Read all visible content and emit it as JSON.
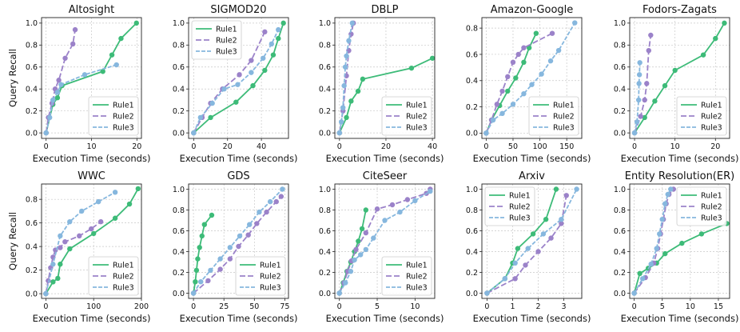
{
  "figure": {
    "xlabel": "Execution Time (seconds)",
    "ylabel": "Query Recall"
  },
  "colors": {
    "rule1": "#3dbb78",
    "rule2": "#9b82c9",
    "rule3": "#86b7de"
  },
  "chart_data": [
    {
      "type": "line",
      "title": "Altosight",
      "xlabel": "Execution Time (seconds)",
      "ylabel": "Query Recall",
      "xlim": [
        -1,
        21
      ],
      "ylim": [
        -0.05,
        1.05
      ],
      "xticks": [
        0,
        10,
        20
      ],
      "yticks": [
        0.0,
        0.2,
        0.4,
        0.6,
        0.8,
        1.0
      ],
      "grid": true,
      "legend": "bottom-right",
      "series": [
        {
          "name": "Rule1",
          "x": [
            0,
            1.5,
            2.5,
            3.5,
            12.5,
            14.5,
            16.5,
            19.9
          ],
          "y": [
            0.0,
            0.26,
            0.32,
            0.43,
            0.56,
            0.71,
            0.86,
            1.0
          ]
        },
        {
          "name": "Rule2",
          "x": [
            0,
            0.5,
            1.3,
            2.0,
            2.8,
            4.2,
            5.9,
            6.4
          ],
          "y": [
            0.0,
            0.14,
            0.27,
            0.4,
            0.48,
            0.68,
            0.81,
            0.94
          ]
        },
        {
          "name": "Rule3",
          "x": [
            0,
            0.8,
            1.5,
            2.5,
            3.3,
            8.5,
            15.5
          ],
          "y": [
            0.0,
            0.14,
            0.3,
            0.37,
            0.44,
            0.53,
            0.62
          ]
        }
      ]
    },
    {
      "type": "line",
      "title": "SIGMOD20",
      "xlabel": "Execution Time (seconds)",
      "ylabel": "",
      "xlim": [
        -3,
        56
      ],
      "ylim": [
        -0.05,
        1.05
      ],
      "xticks": [
        0,
        20,
        40
      ],
      "yticks": [
        0.0,
        0.2,
        0.4,
        0.6,
        0.8,
        1.0
      ],
      "grid": true,
      "legend": "top-left",
      "series": [
        {
          "name": "Rule1",
          "x": [
            0,
            10,
            25,
            35,
            42,
            47,
            50,
            53
          ],
          "y": [
            0.0,
            0.14,
            0.28,
            0.43,
            0.57,
            0.71,
            0.86,
            1.0
          ]
        },
        {
          "name": "Rule2",
          "x": [
            0,
            5,
            10,
            17,
            27,
            34,
            42
          ],
          "y": [
            0.0,
            0.14,
            0.27,
            0.4,
            0.53,
            0.66,
            0.92
          ]
        },
        {
          "name": "Rule3",
          "x": [
            0,
            4,
            11,
            18,
            26,
            34,
            41,
            46,
            50
          ],
          "y": [
            0.0,
            0.14,
            0.27,
            0.4,
            0.44,
            0.55,
            0.68,
            0.81,
            0.94
          ]
        }
      ]
    },
    {
      "type": "line",
      "title": "DBLP",
      "xlabel": "Execution Time (seconds)",
      "ylabel": "",
      "xlim": [
        -2,
        41
      ],
      "ylim": [
        -0.05,
        1.05
      ],
      "xticks": [
        0,
        20,
        40
      ],
      "yticks": [
        0.0,
        0.2,
        0.4,
        0.6,
        0.8,
        1.0
      ],
      "grid": true,
      "legend": "bottom-right",
      "series": [
        {
          "name": "Rule1",
          "x": [
            0,
            3,
            5,
            8,
            10,
            31,
            40
          ],
          "y": [
            0.0,
            0.14,
            0.29,
            0.38,
            0.49,
            0.59,
            0.68
          ]
        },
        {
          "name": "Rule2",
          "x": [
            0,
            1.5,
            3,
            4,
            5,
            6
          ],
          "y": [
            0.0,
            0.2,
            0.52,
            0.75,
            0.9,
            1.0
          ]
        },
        {
          "name": "Rule3",
          "x": [
            0,
            0.8,
            1.5,
            2,
            2.5,
            3,
            4,
            5.5
          ],
          "y": [
            0.0,
            0.1,
            0.23,
            0.43,
            0.6,
            0.7,
            0.84,
            1.0
          ]
        }
      ]
    },
    {
      "type": "line",
      "title": "Amazon-Google",
      "xlabel": "Execution Time (seconds)",
      "ylabel": "",
      "xlim": [
        -8,
        178
      ],
      "ylim": [
        -0.04,
        0.88
      ],
      "xticks": [
        0,
        50,
        100,
        150
      ],
      "yticks": [
        0.0,
        0.2,
        0.4,
        0.6,
        0.8
      ],
      "grid": true,
      "legend": "bottom-right",
      "series": [
        {
          "name": "Rule1",
          "x": [
            0,
            10,
            25,
            40,
            55,
            70,
            80,
            93
          ],
          "y": [
            0.0,
            0.1,
            0.21,
            0.32,
            0.42,
            0.54,
            0.65,
            0.76
          ]
        },
        {
          "name": "Rule2",
          "x": [
            0,
            10,
            20,
            30,
            40,
            50,
            60,
            70,
            123
          ],
          "y": [
            0.0,
            0.1,
            0.22,
            0.32,
            0.43,
            0.54,
            0.6,
            0.65,
            0.76
          ]
        },
        {
          "name": "Rule3",
          "x": [
            0,
            13,
            30,
            50,
            70,
            85,
            103,
            120,
            135,
            165
          ],
          "y": [
            0.0,
            0.1,
            0.15,
            0.22,
            0.3,
            0.37,
            0.45,
            0.55,
            0.63,
            0.84
          ]
        }
      ]
    },
    {
      "type": "line",
      "title": "Fodors-Zagats",
      "xlabel": "Execution Time (seconds)",
      "ylabel": "",
      "xlim": [
        -1.2,
        23.5
      ],
      "ylim": [
        -0.05,
        1.05
      ],
      "xticks": [
        0,
        10,
        20
      ],
      "yticks": [
        0.0,
        0.2,
        0.4,
        0.6,
        0.8,
        1.0
      ],
      "grid": true,
      "legend": "bottom-right",
      "series": [
        {
          "name": "Rule1",
          "x": [
            0,
            2.5,
            5,
            7.5,
            10,
            17,
            20,
            22.2
          ],
          "y": [
            0.0,
            0.14,
            0.29,
            0.43,
            0.57,
            0.71,
            0.86,
            1.0
          ]
        },
        {
          "name": "Rule2",
          "x": [
            0,
            1.5,
            2.5,
            3,
            3.5,
            4
          ],
          "y": [
            0.0,
            0.15,
            0.3,
            0.45,
            0.75,
            0.89
          ]
        },
        {
          "name": "Rule3",
          "x": [
            0,
            0.6,
            1.0,
            1.1,
            1.2,
            1.3
          ],
          "y": [
            0.0,
            0.1,
            0.3,
            0.45,
            0.53,
            0.64
          ]
        }
      ]
    },
    {
      "type": "line",
      "title": "WWC",
      "xlabel": "Execution Time (seconds)",
      "ylabel": "Query Recall",
      "xlim": [
        -9,
        200
      ],
      "ylim": [
        -0.04,
        0.93
      ],
      "xticks": [
        0,
        100,
        200
      ],
      "yticks": [
        0.0,
        0.2,
        0.4,
        0.6,
        0.8
      ],
      "grid": true,
      "legend": "bottom-right",
      "series": [
        {
          "name": "Rule1",
          "x": [
            0,
            15,
            25,
            30,
            50,
            100,
            145,
            175,
            193
          ],
          "y": [
            0.0,
            0.1,
            0.13,
            0.25,
            0.38,
            0.51,
            0.64,
            0.76,
            0.89
          ]
        },
        {
          "name": "Rule2",
          "x": [
            0,
            5,
            10,
            15,
            20,
            30,
            40,
            70,
            95,
            115
          ],
          "y": [
            0.0,
            0.11,
            0.22,
            0.31,
            0.37,
            0.39,
            0.44,
            0.49,
            0.55,
            0.61
          ]
        },
        {
          "name": "Rule3",
          "x": [
            0,
            15,
            30,
            50,
            75,
            110,
            145
          ],
          "y": [
            0.0,
            0.25,
            0.49,
            0.61,
            0.7,
            0.78,
            0.86
          ]
        }
      ]
    },
    {
      "type": "line",
      "title": "GDS",
      "xlabel": "Execution Time (seconds)",
      "ylabel": "",
      "xlim": [
        -4,
        78
      ],
      "ylim": [
        -0.05,
        1.05
      ],
      "xticks": [
        0,
        25,
        50,
        75
      ],
      "yticks": [
        0.0,
        0.2,
        0.4,
        0.6,
        0.8,
        1.0
      ],
      "grid": true,
      "legend": "bottom-right",
      "series": [
        {
          "name": "Rule1",
          "x": [
            0,
            1.5,
            2.5,
            3.5,
            5,
            7,
            9,
            15
          ],
          "y": [
            0.0,
            0.11,
            0.22,
            0.33,
            0.44,
            0.55,
            0.66,
            0.75
          ]
        },
        {
          "name": "Rule2",
          "x": [
            0,
            12,
            22,
            30,
            37,
            45,
            52,
            60,
            68,
            72
          ],
          "y": [
            0.0,
            0.12,
            0.23,
            0.33,
            0.45,
            0.56,
            0.67,
            0.78,
            0.88,
            0.93
          ]
        },
        {
          "name": "Rule3",
          "x": [
            0,
            6,
            14,
            22,
            30,
            38,
            46,
            54,
            63,
            73
          ],
          "y": [
            0.0,
            0.11,
            0.22,
            0.33,
            0.44,
            0.55,
            0.66,
            0.78,
            0.88,
            1.0
          ]
        }
      ]
    },
    {
      "type": "line",
      "title": "CiteSeer",
      "xlabel": "Execution Time (seconds)",
      "ylabel": "",
      "xlim": [
        -0.6,
        12.6
      ],
      "ylim": [
        -0.05,
        1.05
      ],
      "xticks": [
        0,
        5,
        10
      ],
      "yticks": [
        0.0,
        0.2,
        0.4,
        0.6,
        0.8,
        1.0
      ],
      "grid": true,
      "legend": "bottom-right",
      "series": [
        {
          "name": "Rule1",
          "x": [
            0,
            0.5,
            1,
            1.5,
            2,
            2.5,
            3,
            3.5
          ],
          "y": [
            0.0,
            0.1,
            0.21,
            0.3,
            0.4,
            0.5,
            0.62,
            0.8
          ]
        },
        {
          "name": "Rule2",
          "x": [
            0,
            0.6,
            1.1,
            1.6,
            2.2,
            3.5,
            5,
            7,
            9,
            11.5,
            12
          ],
          "y": [
            0.0,
            0.1,
            0.21,
            0.31,
            0.42,
            0.58,
            0.81,
            0.85,
            0.9,
            0.96,
            1.0
          ]
        },
        {
          "name": "Rule3",
          "x": [
            0,
            0.8,
            1.5,
            2,
            2.8,
            3.5,
            4.5,
            6,
            8,
            10,
            12
          ],
          "y": [
            0.0,
            0.1,
            0.21,
            0.32,
            0.37,
            0.42,
            0.53,
            0.7,
            0.78,
            0.89,
            0.98
          ]
        }
      ]
    },
    {
      "type": "line",
      "title": "Arxiv",
      "xlabel": "Execution Time (seconds)",
      "ylabel": "",
      "xlim": [
        -0.2,
        3.7
      ],
      "ylim": [
        -0.05,
        1.05
      ],
      "xticks": [
        0,
        1,
        2,
        3
      ],
      "yticks": [
        0.0,
        0.2,
        0.4,
        0.6,
        0.8,
        1.0
      ],
      "grid": true,
      "legend": "top-left",
      "series": [
        {
          "name": "Rule1",
          "x": [
            0,
            0.7,
            1.0,
            1.2,
            1.8,
            2.3,
            2.7
          ],
          "y": [
            0.0,
            0.14,
            0.29,
            0.43,
            0.57,
            0.71,
            1.0
          ]
        },
        {
          "name": "Rule2",
          "x": [
            0,
            1.1,
            1.5,
            2.0,
            2.5,
            2.9,
            3.1
          ],
          "y": [
            0.0,
            0.14,
            0.27,
            0.4,
            0.53,
            0.67,
            0.94
          ]
        },
        {
          "name": "Rule3",
          "x": [
            0,
            0.7,
            1.1,
            1.6,
            2.2,
            2.9,
            3.5
          ],
          "y": [
            0.0,
            0.14,
            0.29,
            0.43,
            0.57,
            0.71,
            1.0
          ]
        }
      ]
    },
    {
      "type": "line",
      "title": "Entity Resolution(ER)",
      "xlabel": "Execution Time (seconds)",
      "ylabel": "",
      "xlim": [
        -0.8,
        17
      ],
      "ylim": [
        -0.05,
        1.05
      ],
      "xticks": [
        0,
        5,
        10,
        15
      ],
      "yticks": [
        0.0,
        0.2,
        0.4,
        0.6,
        0.8,
        1.0
      ],
      "grid": true,
      "legend": "top-right",
      "series": [
        {
          "name": "Rule1",
          "x": [
            0,
            1,
            2.5,
            4,
            5.5,
            8.5,
            12,
            16.5
          ],
          "y": [
            0.0,
            0.19,
            0.24,
            0.29,
            0.38,
            0.48,
            0.57,
            0.67
          ]
        },
        {
          "name": "Rule2",
          "x": [
            0,
            2,
            3.5,
            4.2,
            4.7,
            5.2,
            5.7,
            6.2,
            7
          ],
          "y": [
            0.0,
            0.15,
            0.29,
            0.43,
            0.57,
            0.71,
            0.86,
            0.95,
            1.0
          ]
        },
        {
          "name": "Rule3",
          "x": [
            0,
            1.5,
            3,
            4,
            4.5,
            5,
            5.5,
            6,
            6.5
          ],
          "y": [
            0.0,
            0.14,
            0.28,
            0.43,
            0.57,
            0.71,
            0.86,
            0.95,
            1.0
          ]
        }
      ]
    }
  ]
}
